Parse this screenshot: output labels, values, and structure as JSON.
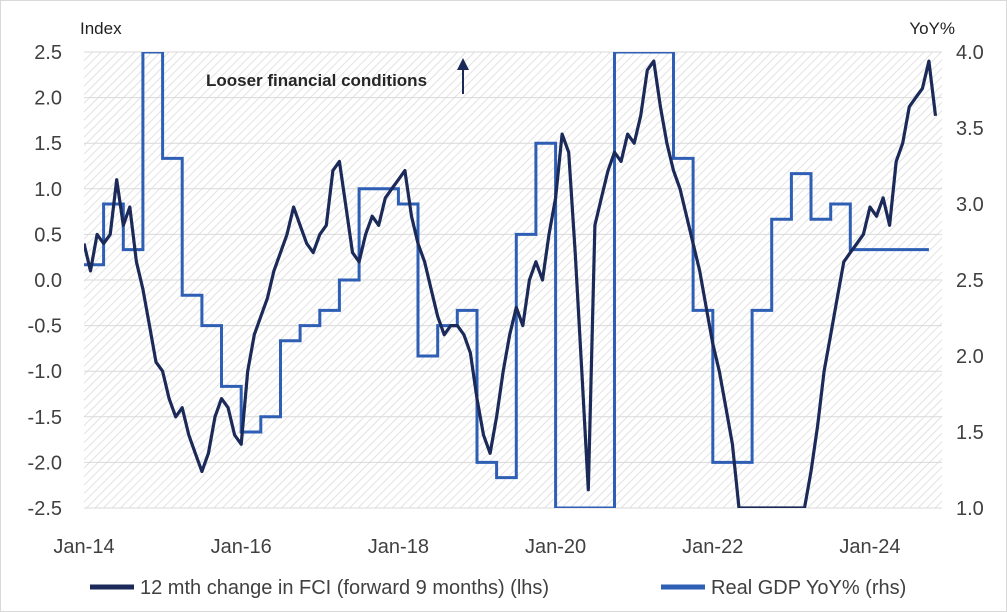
{
  "chart_data": {
    "type": "line",
    "title": "",
    "y_left_label": "Index",
    "y_right_label": "YoY%",
    "ylim_left": [
      -2.5,
      2.5
    ],
    "ylim_right": [
      1.0,
      4.0
    ],
    "xlim": [
      "2014-01",
      "2024-12"
    ],
    "x_ticks": [
      "Jan-14",
      "Jan-16",
      "Jan-18",
      "Jan-20",
      "Jan-22",
      "Jan-24"
    ],
    "y_left_ticks": [
      "2.5",
      "2.0",
      "1.5",
      "1.0",
      "0.5",
      "0.0",
      "-0.5",
      "-1.0",
      "-1.5",
      "-2.0",
      "-2.5"
    ],
    "y_right_ticks": [
      "4.0",
      "3.5",
      "3.0",
      "2.5",
      "2.0",
      "1.5",
      "1.0"
    ],
    "annotation": "Looser financial conditions",
    "legend_position": "bottom",
    "colors": {
      "fci": "#1b2a58",
      "gdp": "#2e5fb5",
      "hatch": "#d6d6d6"
    },
    "series": [
      {
        "name": "12 mth change in FCI (forward 9 months) (lhs)",
        "axis": "left",
        "x": [
          "2014-01",
          "2014-02",
          "2014-03",
          "2014-04",
          "2014-05",
          "2014-06",
          "2014-07",
          "2014-08",
          "2014-09",
          "2014-10",
          "2014-11",
          "2014-12",
          "2015-01",
          "2015-02",
          "2015-03",
          "2015-04",
          "2015-05",
          "2015-06",
          "2015-07",
          "2015-08",
          "2015-09",
          "2015-10",
          "2015-11",
          "2015-12",
          "2016-01",
          "2016-02",
          "2016-03",
          "2016-04",
          "2016-05",
          "2016-06",
          "2016-07",
          "2016-08",
          "2016-09",
          "2016-10",
          "2016-11",
          "2016-12",
          "2017-01",
          "2017-02",
          "2017-03",
          "2017-04",
          "2017-05",
          "2017-06",
          "2017-07",
          "2017-08",
          "2017-09",
          "2017-10",
          "2017-11",
          "2017-12",
          "2018-01",
          "2018-02",
          "2018-03",
          "2018-04",
          "2018-05",
          "2018-06",
          "2018-07",
          "2018-08",
          "2018-09",
          "2018-10",
          "2018-11",
          "2018-12",
          "2019-01",
          "2019-02",
          "2019-03",
          "2019-04",
          "2019-05",
          "2019-06",
          "2019-07",
          "2019-08",
          "2019-09",
          "2019-10",
          "2019-11",
          "2019-12",
          "2020-01",
          "2020-02",
          "2020-03",
          "2020-04",
          "2020-05",
          "2020-06",
          "2020-07",
          "2020-08",
          "2020-09",
          "2020-10",
          "2020-11",
          "2020-12",
          "2021-01",
          "2021-02",
          "2021-03",
          "2021-04",
          "2021-05",
          "2021-06",
          "2021-07",
          "2021-08",
          "2021-09",
          "2021-10",
          "2021-11",
          "2021-12",
          "2022-01",
          "2022-02",
          "2022-03",
          "2022-04",
          "2022-05",
          "2022-06",
          "2022-07",
          "2022-08",
          "2022-09",
          "2022-10",
          "2022-11",
          "2022-12",
          "2023-01",
          "2023-02",
          "2023-03",
          "2023-04",
          "2023-05",
          "2023-06",
          "2023-07",
          "2023-08",
          "2023-09",
          "2023-10",
          "2023-11",
          "2023-12",
          "2024-01",
          "2024-02",
          "2024-03",
          "2024-04",
          "2024-05",
          "2024-06",
          "2024-07",
          "2024-08",
          "2024-09",
          "2024-10",
          "2024-11"
        ],
        "values": [
          0.4,
          0.1,
          0.5,
          0.4,
          0.5,
          1.1,
          0.6,
          0.8,
          0.2,
          -0.1,
          -0.5,
          -0.9,
          -1.0,
          -1.3,
          -1.5,
          -1.4,
          -1.7,
          -1.9,
          -2.1,
          -1.9,
          -1.5,
          -1.3,
          -1.4,
          -1.7,
          -1.8,
          -1.0,
          -0.6,
          -0.4,
          -0.2,
          0.1,
          0.3,
          0.5,
          0.8,
          0.6,
          0.4,
          0.3,
          0.5,
          0.6,
          1.2,
          1.3,
          0.8,
          0.3,
          0.2,
          0.5,
          0.7,
          0.6,
          0.9,
          1.0,
          1.1,
          1.2,
          0.7,
          0.4,
          0.2,
          -0.1,
          -0.4,
          -0.6,
          -0.5,
          -0.5,
          -0.6,
          -0.8,
          -1.3,
          -1.7,
          -1.9,
          -1.5,
          -1.0,
          -0.6,
          -0.3,
          -0.5,
          0.0,
          0.2,
          0.0,
          0.5,
          0.9,
          1.6,
          1.4,
          0.3,
          -1.0,
          -2.3,
          0.6,
          0.9,
          1.2,
          1.4,
          1.3,
          1.6,
          1.5,
          1.8,
          2.3,
          2.4,
          1.9,
          1.5,
          1.2,
          1.0,
          0.7,
          0.4,
          0.1,
          -0.3,
          -0.7,
          -1.0,
          -1.4,
          -1.8,
          -2.5,
          -2.5,
          -2.5,
          -2.5,
          -2.5,
          -2.5,
          -2.5,
          -2.5,
          -2.5,
          -2.5,
          -2.5,
          -2.1,
          -1.6,
          -1.0,
          -0.6,
          -0.2,
          0.2,
          0.3,
          0.4,
          0.5,
          0.8,
          0.7,
          0.9,
          0.6,
          1.3,
          1.5,
          1.9,
          2.0,
          2.1,
          2.4,
          1.8
        ]
      },
      {
        "name": "Real GDP YoY% (rhs)",
        "axis": "right",
        "step": true,
        "x": [
          "2014-01",
          "2014-04",
          "2014-07",
          "2014-10",
          "2015-01",
          "2015-04",
          "2015-07",
          "2015-10",
          "2016-01",
          "2016-04",
          "2016-07",
          "2016-10",
          "2017-01",
          "2017-04",
          "2017-07",
          "2017-10",
          "2018-01",
          "2018-04",
          "2018-07",
          "2018-10",
          "2019-01",
          "2019-04",
          "2019-07",
          "2019-10",
          "2020-01",
          "2020-04",
          "2020-07",
          "2020-10",
          "2021-01",
          "2021-04",
          "2021-07",
          "2021-10",
          "2022-01",
          "2022-04",
          "2022-07",
          "2022-10",
          "2023-01",
          "2023-04",
          "2023-07",
          "2023-10",
          "2024-01",
          "2024-04",
          "2024-07"
        ],
        "values": [
          2.6,
          3.0,
          2.7,
          4.0,
          3.3,
          2.4,
          2.2,
          1.8,
          1.5,
          1.6,
          2.1,
          2.2,
          2.3,
          2.5,
          3.1,
          3.1,
          3.0,
          2.0,
          2.2,
          2.3,
          1.3,
          1.2,
          2.8,
          3.4,
          1.0,
          1.0,
          1.0,
          4.0,
          4.0,
          4.0,
          3.3,
          2.3,
          1.3,
          1.3,
          2.3,
          2.9,
          3.2,
          2.9,
          3.0,
          2.7,
          2.7,
          2.7,
          2.7
        ]
      }
    ]
  },
  "legend": {
    "items": [
      {
        "label": "12 mth change in FCI (forward 9 months) (lhs)"
      },
      {
        "label": "Real GDP YoY% (rhs)"
      }
    ]
  }
}
